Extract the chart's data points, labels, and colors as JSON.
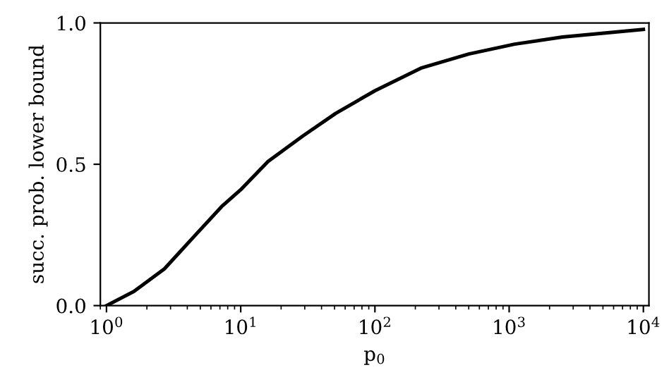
{
  "chart_data": {
    "type": "line",
    "xlabel": "p$_{0}$",
    "ylabel": "succ. prob. lower bound",
    "x": [
      1.0,
      1.6,
      2.7,
      4.4,
      7.2,
      10,
      16,
      29,
      51,
      100,
      220,
      500,
      1100,
      2500,
      10000
    ],
    "series": [
      {
        "color": "#000000",
        "values": [
          0,
          0.05,
          0.13,
          0.24,
          0.35,
          0.41,
          0.51,
          0.6,
          0.68,
          0.76,
          0.84,
          0.89,
          0.925,
          0.95,
          0.977
        ]
      }
    ],
    "log": "x",
    "xlim": [
      0.9,
      11000
    ],
    "ylim": [
      0,
      1
    ],
    "xticks": [
      {
        "value": 1,
        "label": "10$^{0}$"
      },
      {
        "value": 10,
        "label": "10$^{1}$"
      },
      {
        "value": 100,
        "label": "10$^{2}$"
      },
      {
        "value": 1000,
        "label": "10$^{3}$"
      },
      {
        "value": 10000,
        "label": "10$^{4}$"
      }
    ],
    "yticks": [
      {
        "value": 0,
        "label": "0.0"
      },
      {
        "value": 0.5,
        "label": "0.5"
      },
      {
        "value": 1,
        "label": "1.0"
      }
    ],
    "marker": "none",
    "line_style": "solid"
  }
}
